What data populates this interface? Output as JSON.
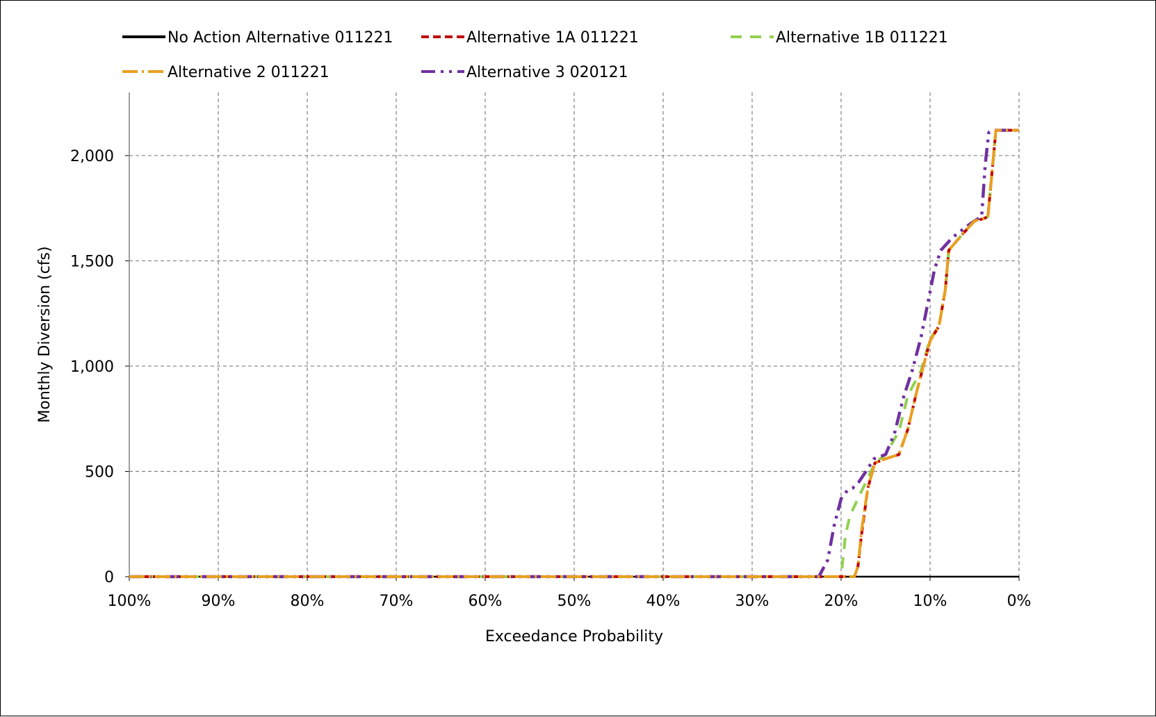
{
  "chart_data": {
    "type": "line",
    "title": "",
    "xlabel": "Exceedance Probability",
    "ylabel": "Monthly Diversion (cfs)",
    "x_reversed": true,
    "xlim": [
      100,
      0
    ],
    "ylim": [
      0,
      2000
    ],
    "xticks": [
      "100%",
      "90%",
      "80%",
      "70%",
      "60%",
      "50%",
      "40%",
      "30%",
      "20%",
      "10%",
      "0%"
    ],
    "xtick_values": [
      100,
      90,
      80,
      70,
      60,
      50,
      40,
      30,
      20,
      10,
      0
    ],
    "yticks": [
      "0",
      "500",
      "1,000",
      "1,500",
      "2,000"
    ],
    "ytick_values": [
      0,
      500,
      1000,
      1500,
      2000
    ],
    "grid": true,
    "legend_position": "top",
    "series": [
      {
        "name": "No Action Alternative 011221",
        "color": "#000000",
        "dash": "solid",
        "x": [
          100,
          0
        ],
        "y": [
          0,
          0
        ]
      },
      {
        "name": "Alternative 1A 011221",
        "color": "#c00000",
        "dash": "dash",
        "x": [
          100,
          18.5,
          18.1,
          17.7,
          17.0,
          16.2,
          15.0,
          13.5,
          12.5,
          11.5,
          10.0,
          9.0,
          8.3,
          7.9,
          6.5,
          5.0,
          4.0,
          3.5,
          2.6,
          0
        ],
        "y": [
          0,
          0,
          50,
          200,
          420,
          540,
          560,
          580,
          700,
          880,
          1120,
          1190,
          1360,
          1550,
          1620,
          1690,
          1700,
          1710,
          2120,
          2120
        ]
      },
      {
        "name": "Alternative 1B 011221",
        "color": "#92d050",
        "dash": "longdash",
        "x": [
          100,
          20.0,
          19.5,
          19.0,
          18.0,
          17.2,
          16.2,
          15.0,
          13.5,
          12.5,
          11.0,
          10.0,
          9.0,
          8.3,
          7.9,
          6.5,
          5.0,
          4.0,
          3.5,
          2.6,
          0
        ],
        "y": [
          0,
          0,
          200,
          290,
          380,
          450,
          540,
          580,
          690,
          860,
          980,
          1130,
          1190,
          1360,
          1550,
          1620,
          1690,
          1700,
          1710,
          2120,
          2120
        ]
      },
      {
        "name": "Alternative 2 011221",
        "color": "#e8a020",
        "dash": "dashdot",
        "x": [
          100,
          18.5,
          18.1,
          17.7,
          17.0,
          16.2,
          15.0,
          13.5,
          12.5,
          11.5,
          10.0,
          9.0,
          8.3,
          7.9,
          6.5,
          5.0,
          4.0,
          3.5,
          2.6,
          0
        ],
        "y": [
          0,
          0,
          50,
          220,
          420,
          540,
          560,
          580,
          700,
          880,
          1120,
          1190,
          1360,
          1550,
          1620,
          1690,
          1700,
          1710,
          2120,
          2120
        ]
      },
      {
        "name": "Alternative 3 020121",
        "color": "#7030a0",
        "dash": "dashdotdot",
        "x": [
          100,
          22.5,
          21.5,
          20.8,
          20.0,
          19.3,
          18.7,
          18.0,
          17.2,
          16.3,
          15.0,
          14.0,
          13.0,
          12.0,
          11.0,
          10.2,
          9.5,
          8.8,
          7.5,
          6.0,
          5.0,
          4.6,
          4.2,
          3.8,
          3.4,
          3.0,
          2.6,
          0
        ],
        "y": [
          0,
          0,
          80,
          240,
          370,
          410,
          420,
          450,
          500,
          560,
          580,
          680,
          850,
          980,
          1140,
          1310,
          1460,
          1550,
          1610,
          1660,
          1690,
          1700,
          1710,
          1960,
          2110,
          2120,
          2120,
          2120
        ]
      }
    ]
  }
}
